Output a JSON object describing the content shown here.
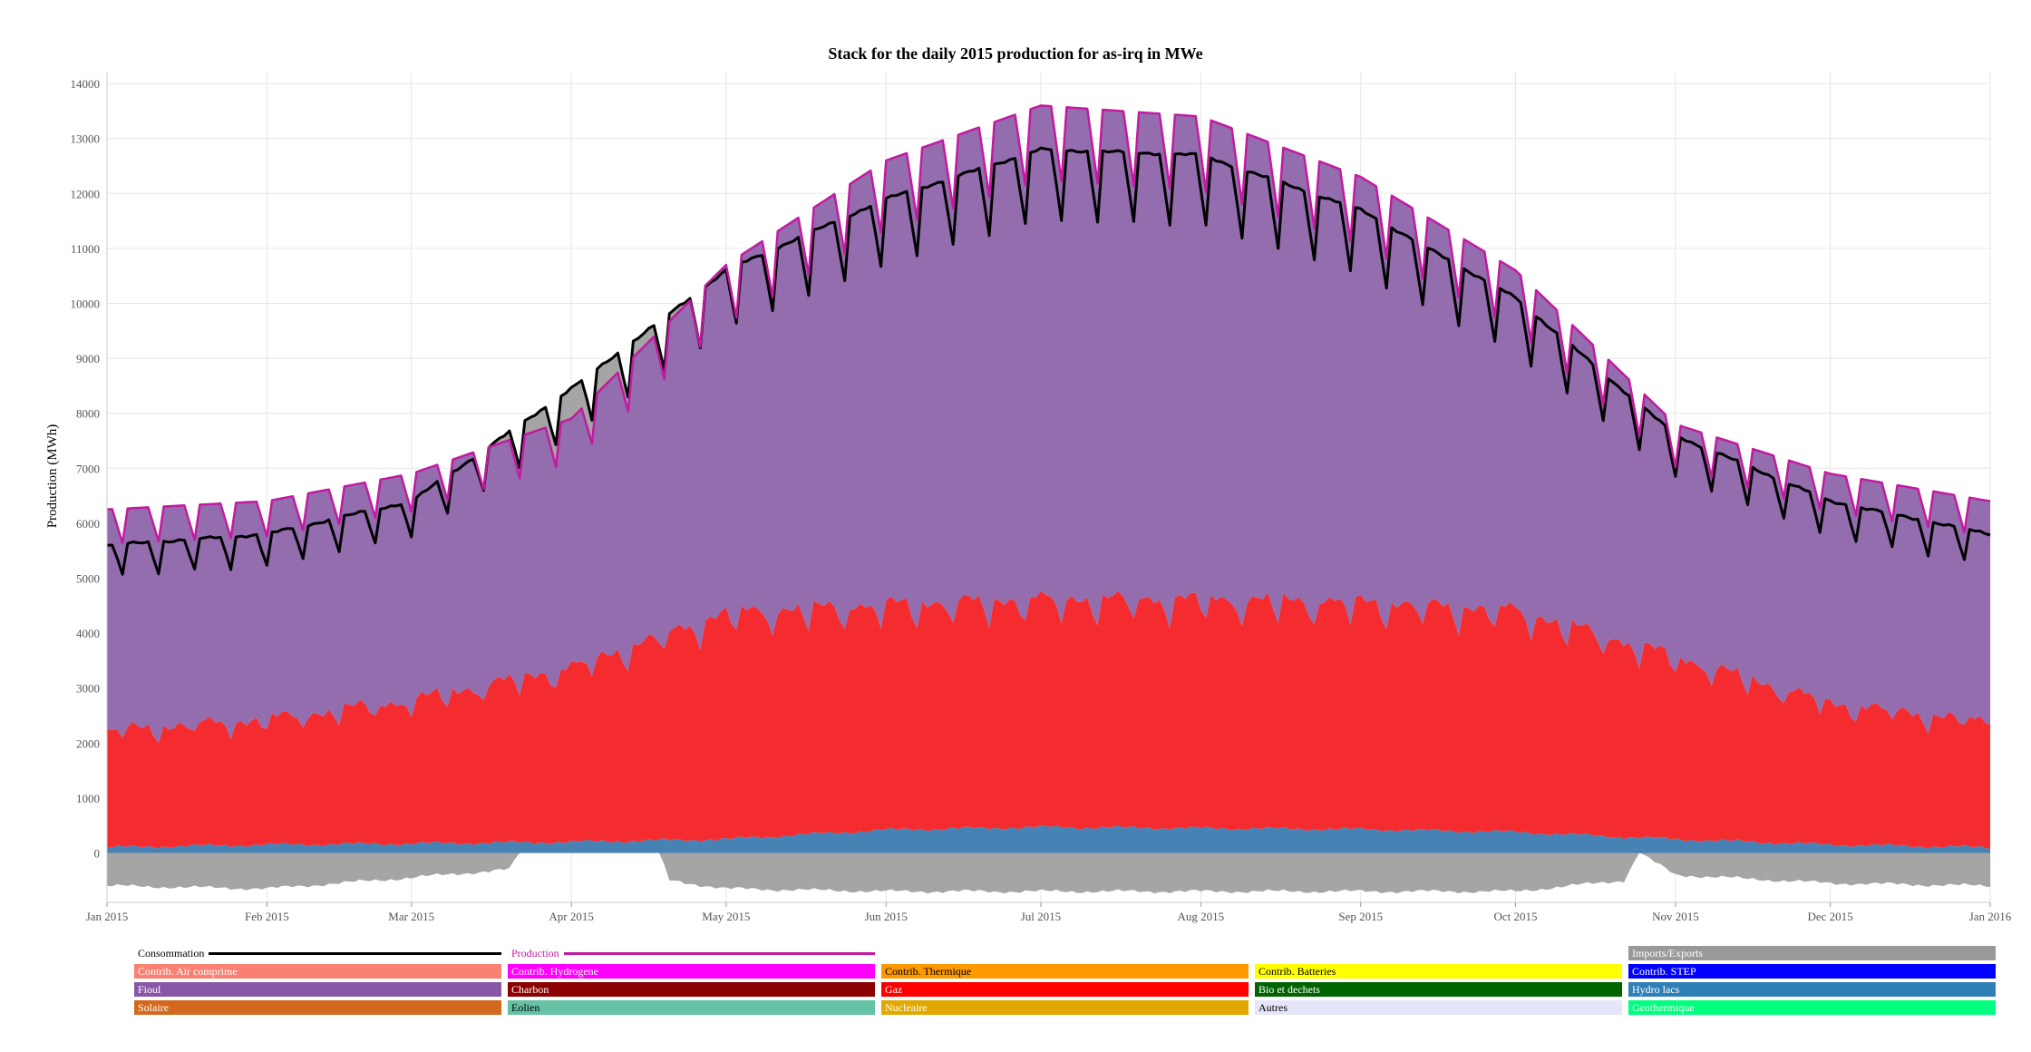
{
  "chart_data": {
    "type": "area",
    "title": "Stack for the daily 2015 production for as-irq in MWe",
    "ylabel": "Production (MWh)",
    "xlabel": "",
    "ylim": [
      -900,
      14200
    ],
    "xlim": [
      "2015-01-01",
      "2016-01-01"
    ],
    "yticks": [
      0,
      1000,
      2000,
      3000,
      4000,
      5000,
      6000,
      7000,
      8000,
      9000,
      10000,
      11000,
      12000,
      13000,
      14000
    ],
    "xticks": [
      {
        "label": "Jan 2015",
        "date": "2015-01-01"
      },
      {
        "label": "Feb 2015",
        "date": "2015-02-01"
      },
      {
        "label": "Mar 2015",
        "date": "2015-03-01"
      },
      {
        "label": "Apr 2015",
        "date": "2015-04-01"
      },
      {
        "label": "May 2015",
        "date": "2015-05-01"
      },
      {
        "label": "Jun 2015",
        "date": "2015-06-01"
      },
      {
        "label": "Jul 2015",
        "date": "2015-07-01"
      },
      {
        "label": "Aug 2015",
        "date": "2015-08-01"
      },
      {
        "label": "Sep 2015",
        "date": "2015-09-01"
      },
      {
        "label": "Oct 2015",
        "date": "2015-10-01"
      },
      {
        "label": "Nov 2015",
        "date": "2015-11-01"
      },
      {
        "label": "Dec 2015",
        "date": "2015-12-01"
      },
      {
        "label": "Jan 2016",
        "date": "2016-01-01"
      }
    ],
    "grid": true,
    "legend_position": "bottom",
    "stacked_series": [
      {
        "name": "Hydro lacs",
        "color": "#4682b4",
        "points": [
          [
            "2015-01-01",
            100
          ],
          [
            "2015-02-01",
            150
          ],
          [
            "2015-03-01",
            170
          ],
          [
            "2015-04-01",
            200
          ],
          [
            "2015-05-01",
            250
          ],
          [
            "2015-06-01",
            420
          ],
          [
            "2015-07-01",
            470
          ],
          [
            "2015-08-01",
            450
          ],
          [
            "2015-09-01",
            430
          ],
          [
            "2015-10-01",
            380
          ],
          [
            "2015-11-01",
            250
          ],
          [
            "2015-12-01",
            150
          ],
          [
            "2016-01-01",
            100
          ]
        ]
      },
      {
        "name": "Gaz",
        "color": "#f42c2f",
        "points": [
          [
            "2015-01-01",
            2250
          ],
          [
            "2015-02-01",
            2450
          ],
          [
            "2015-03-01",
            2800
          ],
          [
            "2015-04-01",
            3400
          ],
          [
            "2015-05-01",
            4400
          ],
          [
            "2015-06-01",
            4550
          ],
          [
            "2015-07-01",
            4650
          ],
          [
            "2015-08-01",
            4650
          ],
          [
            "2015-09-01",
            4600
          ],
          [
            "2015-10-01",
            4450
          ],
          [
            "2015-11-01",
            3600
          ],
          [
            "2015-12-01",
            2750
          ],
          [
            "2016-01-01",
            2400
          ]
        ]
      },
      {
        "name": "Fioul",
        "color": "#936dad",
        "points": [
          [
            "2015-01-01",
            6250
          ],
          [
            "2015-02-01",
            6400
          ],
          [
            "2015-03-01",
            6900
          ],
          [
            "2015-04-01",
            7900
          ],
          [
            "2015-05-01",
            10700
          ],
          [
            "2015-06-01",
            12600
          ],
          [
            "2015-07-01",
            13600
          ],
          [
            "2015-08-01",
            13400
          ],
          [
            "2015-09-01",
            12300
          ],
          [
            "2015-10-01",
            10600
          ],
          [
            "2015-11-01",
            7800
          ],
          [
            "2015-12-01",
            6900
          ],
          [
            "2016-01-01",
            6400
          ]
        ]
      }
    ],
    "imports_exports": {
      "name": "Imports/Exports",
      "color": "#a5a5a5",
      "points": [
        [
          "2015-01-01",
          -600
        ],
        [
          "2015-02-01",
          -650
        ],
        [
          "2015-03-01",
          -450
        ],
        [
          "2015-03-20",
          -300
        ],
        [
          "2015-03-22",
          0
        ],
        [
          "2015-04-18",
          0
        ],
        [
          "2015-04-20",
          -500
        ],
        [
          "2015-05-01",
          -650
        ],
        [
          "2015-06-01",
          -700
        ],
        [
          "2015-07-01",
          -700
        ],
        [
          "2015-08-01",
          -700
        ],
        [
          "2015-09-01",
          -700
        ],
        [
          "2015-10-01",
          -700
        ],
        [
          "2015-10-22",
          -500
        ],
        [
          "2015-10-25",
          0
        ],
        [
          "2015-11-01",
          -400
        ],
        [
          "2015-12-01",
          -550
        ],
        [
          "2016-01-01",
          -600
        ]
      ]
    },
    "line_series": [
      {
        "name": "Consommation",
        "color": "#000000",
        "points": [
          [
            "2015-01-01",
            5600
          ],
          [
            "2015-02-01",
            5800
          ],
          [
            "2015-03-01",
            6400
          ],
          [
            "2015-04-01",
            8450
          ],
          [
            "2015-05-01",
            10600
          ],
          [
            "2015-06-01",
            11900
          ],
          [
            "2015-07-01",
            12800
          ],
          [
            "2015-08-01",
            12700
          ],
          [
            "2015-09-01",
            11700
          ],
          [
            "2015-10-01",
            10100
          ],
          [
            "2015-11-01",
            7600
          ],
          [
            "2015-12-01",
            6400
          ],
          [
            "2016-01-01",
            5800
          ]
        ]
      },
      {
        "name": "Production",
        "color": "#c21aa0",
        "points": [
          [
            "2015-01-01",
            6250
          ],
          [
            "2015-02-01",
            6400
          ],
          [
            "2015-03-01",
            6900
          ],
          [
            "2015-04-01",
            7900
          ],
          [
            "2015-05-01",
            10700
          ],
          [
            "2015-06-01",
            12600
          ],
          [
            "2015-07-01",
            13600
          ],
          [
            "2015-08-01",
            13400
          ],
          [
            "2015-09-01",
            12300
          ],
          [
            "2015-10-01",
            10600
          ],
          [
            "2015-11-01",
            7800
          ],
          [
            "2015-12-01",
            6900
          ],
          [
            "2016-01-01",
            6400
          ]
        ]
      }
    ],
    "legend_lines": [
      {
        "name": "Consommation",
        "color": "#000000"
      },
      {
        "name": "Production",
        "color": "#c21aa0"
      }
    ],
    "legend": [
      {
        "name": "Imports/Exports",
        "color": "#999999",
        "text_color": "#ffffff"
      },
      {
        "name": "Contrib. Air comprime",
        "color": "#fa8072",
        "text_color": "#ffffff"
      },
      {
        "name": "Contrib. Hydrogene",
        "color": "#ff00ff",
        "text_color": "#ffffff"
      },
      {
        "name": "Contrib. Thermique",
        "color": "#ff9900",
        "text_color": "#000000"
      },
      {
        "name": "Contrib. Batteries",
        "color": "#ffff00",
        "text_color": "#000000"
      },
      {
        "name": "Contrib. STEP",
        "color": "#0000ff",
        "text_color": "#ffffff"
      },
      {
        "name": "Fioul",
        "color": "#8856a7",
        "text_color": "#ffffff"
      },
      {
        "name": "Charbon",
        "color": "#8b0000",
        "text_color": "#ffffff"
      },
      {
        "name": "Gaz",
        "color": "#ff0000",
        "text_color": "#ffffff"
      },
      {
        "name": "Bio et dechets",
        "color": "#006400",
        "text_color": "#ffffff"
      },
      {
        "name": "Hydro lacs",
        "color": "#2f7fb7",
        "text_color": "#ffffff"
      },
      {
        "name": "Solaire",
        "color": "#d2691e",
        "text_color": "#ffffff"
      },
      {
        "name": "Eolien",
        "color": "#66c2a5",
        "text_color": "#000000"
      },
      {
        "name": "Nucleaire",
        "color": "#e0a800",
        "text_color": "#ffffff"
      },
      {
        "name": "Autres",
        "color": "#e6e6fa",
        "text_color": "#000000"
      },
      {
        "name": "Geothermique",
        "color": "#00ff7f",
        "text_color": "#ffffff"
      }
    ]
  }
}
